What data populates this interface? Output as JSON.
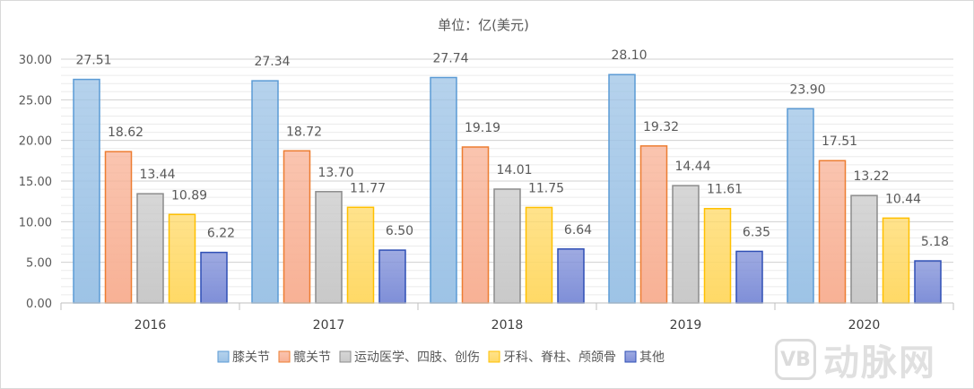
{
  "chart_data": {
    "type": "bar",
    "title": "单位：亿(美元)",
    "categories": [
      "2016",
      "2017",
      "2018",
      "2019",
      "2020"
    ],
    "ylim": [
      0,
      30
    ],
    "yticks": [
      "0.00",
      "5.00",
      "10.00",
      "15.00",
      "20.00",
      "25.00",
      "30.00"
    ],
    "grid": true,
    "legend_position": "bottom",
    "series": [
      {
        "name": "膝关节",
        "color": "#9dc3e6",
        "border": "#5b9bd5",
        "values": [
          27.51,
          27.34,
          27.74,
          28.1,
          23.9
        ],
        "labels": [
          "27.51",
          "27.34",
          "27.74",
          "28.10",
          "23.90"
        ]
      },
      {
        "name": "髋关节",
        "color": "#f8b195",
        "border": "#ed7d31",
        "values": [
          18.62,
          18.72,
          19.19,
          19.32,
          17.51
        ],
        "labels": [
          "18.62",
          "18.72",
          "19.19",
          "19.32",
          "17.51"
        ]
      },
      {
        "name": "运动医学、四肢、创伤",
        "color": "#c9c9c9",
        "border": "#8c8c8c",
        "values": [
          13.44,
          13.7,
          14.01,
          14.44,
          13.22
        ],
        "labels": [
          "13.44",
          "13.70",
          "14.01",
          "14.44",
          "13.22"
        ]
      },
      {
        "name": "牙科、脊柱、颅颌骨",
        "color": "#ffd966",
        "border": "#ffc000",
        "values": [
          10.89,
          11.77,
          11.75,
          11.61,
          10.44
        ],
        "labels": [
          "10.89",
          "11.77",
          "11.75",
          "11.61",
          "10.44"
        ]
      },
      {
        "name": "其他",
        "color": "#7f8fd8",
        "border": "#2f4fb5",
        "values": [
          6.22,
          6.5,
          6.64,
          6.35,
          5.18
        ],
        "labels": [
          "6.22",
          "6.50",
          "6.64",
          "6.35",
          "5.18"
        ]
      }
    ]
  },
  "watermark": {
    "logo_text": "VB",
    "brand": "动脉网"
  }
}
